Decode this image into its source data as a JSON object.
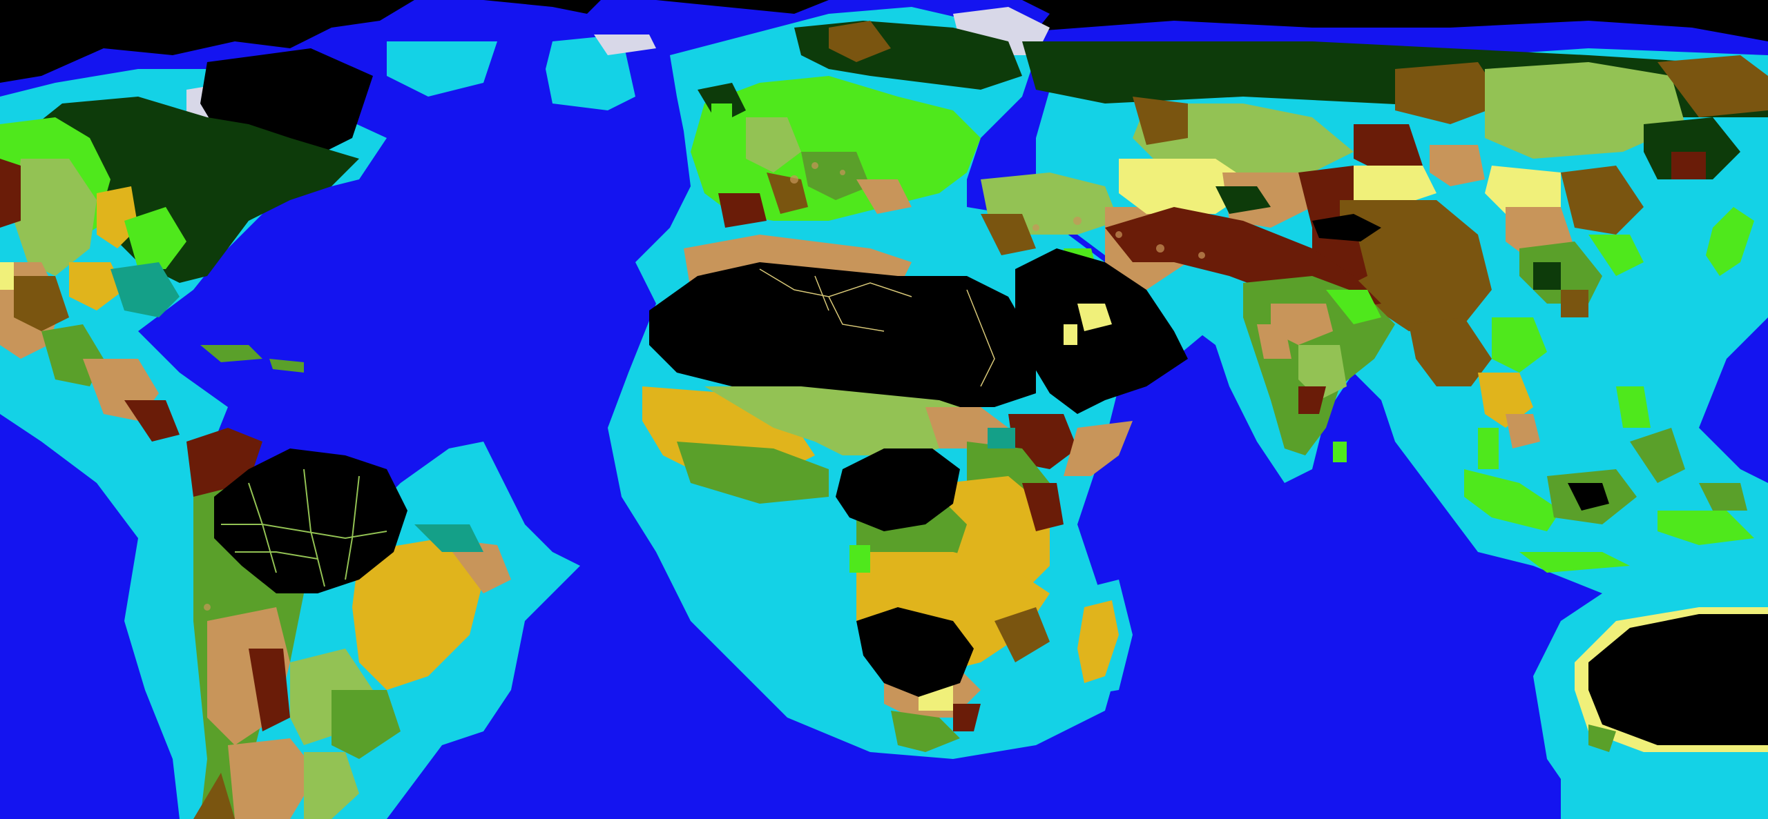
{
  "map": {
    "projection": "equirectangular",
    "colors": {
      "deep_ocean": "#1414f0",
      "shelf_sea": "#14d2e6",
      "unsettled": "#000000",
      "ice": "#d8d8e8",
      "boreal_forest": "#0d3b0a",
      "temperate_forest": "#4fe81c",
      "mixed_forest": "#5aa02a",
      "grassland": "#93c254",
      "steppe_brown": "#7a5510",
      "desert_light": "#f0f07a",
      "arid_tan": "#c8955a",
      "dark_brown": "#6a1c08",
      "savanna_gold": "#e0b41c",
      "teal": "#14a088",
      "river_line": "#d8c878"
    },
    "regions": [
      {
        "name": "north-america",
        "fill": "#0d3b0a"
      },
      {
        "name": "greenland",
        "fill": "#000000"
      },
      {
        "name": "south-america",
        "fill": "#5aa02a"
      },
      {
        "name": "amazon-basin",
        "fill": "#000000"
      },
      {
        "name": "europe",
        "fill": "#4fe81c"
      },
      {
        "name": "siberia",
        "fill": "#0d3b0a"
      },
      {
        "name": "central-asia",
        "fill": "#93c254"
      },
      {
        "name": "sahara",
        "fill": "#000000"
      },
      {
        "name": "arabia",
        "fill": "#000000"
      },
      {
        "name": "sub-saharan-africa",
        "fill": "#e0b41c"
      },
      {
        "name": "congo",
        "fill": "#000000"
      },
      {
        "name": "kalahari",
        "fill": "#000000"
      },
      {
        "name": "india",
        "fill": "#5aa02a"
      },
      {
        "name": "east-asia",
        "fill": "#7a5510"
      },
      {
        "name": "southeast-asia",
        "fill": "#4fe81c"
      },
      {
        "name": "australia",
        "fill": "#000000"
      },
      {
        "name": "madagascar",
        "fill": "#e0b41c"
      }
    ]
  }
}
